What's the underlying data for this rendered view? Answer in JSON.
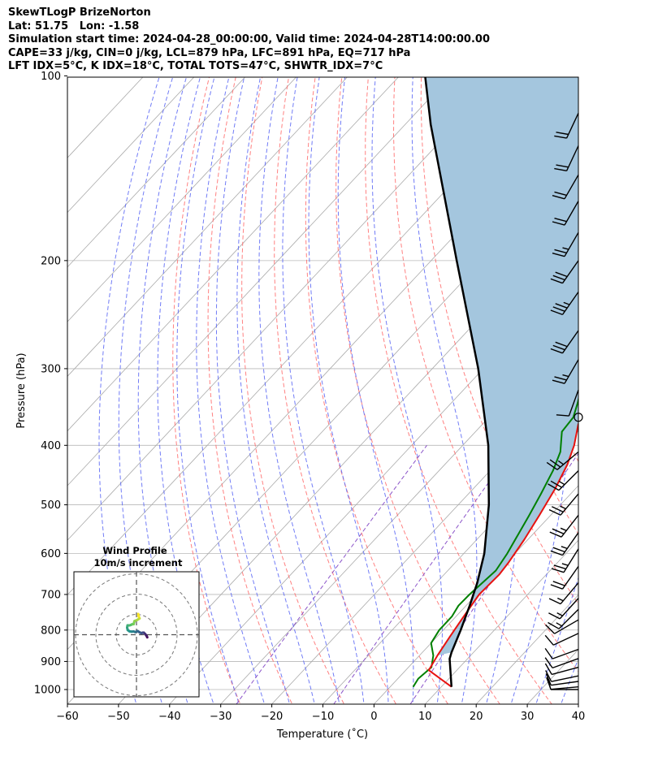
{
  "header": {
    "line1": "SkewTLogP BrizeNorton",
    "line2": "Lat: 51.75   Lon: -1.58",
    "line3": "Simulation start time: 2024-04-28_00:00:00, Valid time: 2024-04-28T14:00:00.00",
    "line4": "CAPE=33 j/kg, CIN=0 j/kg, LCL=879 hPa, LFC=891 hPa, EQ=717 hPa",
    "line5": "LFT IDX=5°C, K IDX=18°C, TOTAL TOTS=47°C, SHWTR_IDX=7°C"
  },
  "chart_data": {
    "type": "line",
    "xlabel": "Temperature (˚C)",
    "ylabel": "Pressure (hPa)",
    "xlim": [
      -60,
      40
    ],
    "ylim": [
      1050,
      100
    ],
    "yscale": "log",
    "grid": true,
    "xticks": [
      -60,
      -50,
      -40,
      -30,
      -20,
      -10,
      0,
      10,
      20,
      30,
      40
    ],
    "xtick_labels": [
      "−60",
      "−50",
      "−40",
      "−30",
      "−20",
      "−10",
      "0",
      "10",
      "20",
      "30",
      "40"
    ],
    "yticks": [
      1000,
      900,
      800,
      700,
      600,
      500,
      400,
      300,
      200,
      100
    ],
    "ytick_labels": [
      "1000",
      "900",
      "800",
      "700",
      "600",
      "500",
      "400",
      "300",
      "200",
      "100"
    ],
    "series": [
      {
        "role": "temperature",
        "color": "#e8120f",
        "points": [
          [
            12,
            990
          ],
          [
            4.5,
            930
          ],
          [
            3.5,
            880
          ],
          [
            2.5,
            820
          ],
          [
            1.5,
            760
          ],
          [
            0.5,
            700
          ],
          [
            0.8,
            650
          ],
          [
            0.4,
            620
          ],
          [
            -0.7,
            570
          ],
          [
            -2.2,
            520
          ],
          [
            -4,
            470
          ],
          [
            -6,
            430
          ],
          [
            -8.2,
            400
          ],
          [
            -11.2,
            370
          ],
          [
            -12.8,
            350
          ],
          [
            -14.2,
            330
          ],
          [
            -14.4,
            315
          ],
          [
            -13.3,
            300
          ],
          [
            -11.5,
            285
          ],
          [
            -9.6,
            270
          ],
          [
            -7.5,
            260
          ],
          [
            -6.5,
            250
          ],
          [
            -4.5,
            240
          ],
          [
            -2.5,
            230
          ],
          [
            -0.2,
            220
          ],
          [
            1.8,
            210
          ],
          [
            3.2,
            200
          ],
          [
            5.5,
            190
          ],
          [
            8.5,
            180
          ],
          [
            10.5,
            170
          ],
          [
            12.5,
            160
          ],
          [
            14.5,
            150
          ],
          [
            16,
            140
          ],
          [
            17.5,
            130
          ],
          [
            19.5,
            120
          ],
          [
            21.5,
            110
          ],
          [
            23,
            100
          ]
        ]
      },
      {
        "role": "dewpoint",
        "color": "#008000",
        "points": [
          [
            4.5,
            990
          ],
          [
            4,
            960
          ],
          [
            4.5,
            920
          ],
          [
            2.7,
            880
          ],
          [
            0,
            840
          ],
          [
            -0.8,
            800
          ],
          [
            -0.8,
            760
          ],
          [
            -1.5,
            730
          ],
          [
            -1.4,
            700
          ],
          [
            -1,
            670
          ],
          [
            -0.6,
            640
          ],
          [
            -1.5,
            600
          ],
          [
            -2.8,
            560
          ],
          [
            -4.2,
            520
          ],
          [
            -5.8,
            480
          ],
          [
            -7.7,
            440
          ],
          [
            -9.7,
            410
          ],
          [
            -13.1,
            380
          ],
          [
            -13.5,
            360
          ],
          [
            -15.4,
            340
          ],
          [
            -16.5,
            330
          ],
          [
            -15.9,
            310
          ],
          [
            -16.3,
            290
          ],
          [
            -18.5,
            270
          ],
          [
            -22.5,
            253
          ],
          [
            -28.5,
            233
          ],
          [
            -28.5,
            220
          ],
          [
            -29.5,
            210
          ],
          [
            -30.5,
            200
          ],
          [
            -32,
            185
          ],
          [
            -34,
            170
          ],
          [
            -37,
            160
          ],
          [
            -40,
            150
          ],
          [
            -41,
            140
          ],
          [
            -42,
            130
          ],
          [
            -43,
            120
          ],
          [
            -44,
            110
          ],
          [
            -45,
            100
          ]
        ]
      },
      {
        "role": "parcel",
        "color": "#000000",
        "points": [
          [
            12,
            990
          ],
          [
            6.5,
            891
          ],
          [
            5.7,
            870
          ],
          [
            3.4,
            800
          ],
          [
            0.7,
            730
          ],
          [
            -2,
            670
          ],
          [
            -6,
            600
          ],
          [
            -14,
            500
          ],
          [
            -25,
            400
          ],
          [
            -41,
            300
          ],
          [
            -65,
            200
          ],
          [
            -95,
            120
          ],
          [
            -105,
            100
          ]
        ]
      }
    ],
    "cape_fill_color": "#a4c6de",
    "dry_adiabat_color": "#ff6b6b",
    "moist_adiabat_color": "#5865f5",
    "mixing_ratio_color": "#8b54c9",
    "isotherm_color": "#aaaaaa",
    "isobar_color": "#b8b8b8",
    "wind_barbs": {
      "pressures": [
        1000,
        990,
        970,
        950,
        920,
        890,
        860,
        810,
        770,
        740,
        710,
        670,
        630,
        590,
        555,
        520,
        480,
        440,
        410,
        360,
        325,
        290,
        260,
        225,
        200,
        180,
        160,
        145,
        130,
        115
      ],
      "speed_kt": [
        10,
        10,
        10,
        10,
        10,
        10,
        10,
        10,
        10,
        15,
        15,
        15,
        20,
        25,
        25,
        25,
        25,
        25,
        25,
        0,
        10,
        25,
        30,
        35,
        30,
        25,
        20,
        20,
        20,
        20
      ],
      "direction_deg": [
        270,
        265,
        262,
        258,
        255,
        250,
        250,
        245,
        240,
        225,
        222,
        220,
        215,
        212,
        215,
        218,
        220,
        225,
        230,
        0,
        200,
        210,
        215,
        215,
        215,
        210,
        210,
        210,
        205,
        205
      ]
    },
    "inset": {
      "title_line1": "Wind Profile",
      "title_line2": "10m/s increment",
      "rings_ms": [
        10,
        20,
        30
      ],
      "hodograph_u": [
        5.3,
        5.1,
        4.8,
        4.2,
        3.6,
        3.0,
        2.5,
        1.5,
        0.6,
        -0.6,
        -1.4,
        -2.4,
        -3.5,
        -4.3,
        -4.6,
        -4.4,
        -3.4,
        -2.8,
        -2.2,
        -1.4,
        -1.0,
        0.4,
        1.5,
        1.2,
        1.0,
        0.9
      ],
      "hodograph_v": [
        -1.3,
        -0.8,
        -0.3,
        0.4,
        1.0,
        1.0,
        0.7,
        1.2,
        1.8,
        1.3,
        1.6,
        1.5,
        1.7,
        2.3,
        3.5,
        4.6,
        4.6,
        4.8,
        5.1,
        5.2,
        6.7,
        7.3,
        8.0,
        8.8,
        9.2,
        10.2
      ]
    }
  }
}
